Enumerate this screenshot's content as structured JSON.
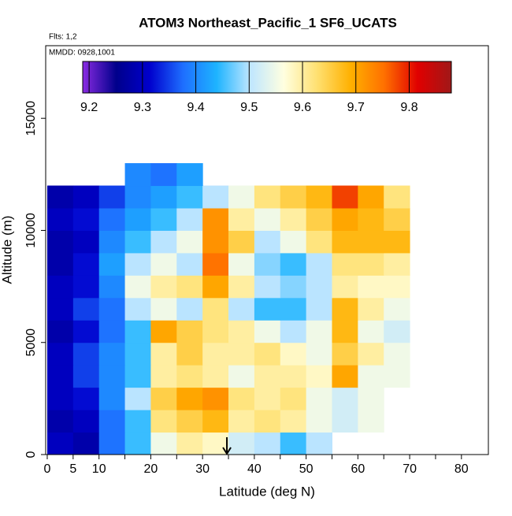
{
  "chart_data": {
    "type": "heatmap",
    "title": "ATOM3 Northeast_Pacific_1 SF6_UCATS",
    "annotations": [
      "Flts: 1,2",
      "MMDD: 0928,1001"
    ],
    "x_label": "Latitude (deg N)",
    "y_label": "Altitude (m)",
    "xlim": [
      -0.3,
      85.2
    ],
    "xticks": [
      0,
      5,
      10,
      20,
      30,
      40,
      50,
      60,
      70,
      80
    ],
    "x_minor_ticks": [
      15,
      25,
      35,
      45,
      55,
      65,
      75
    ],
    "ylim": [
      0,
      18240
    ],
    "yticks": [
      0,
      5000,
      10000,
      15000
    ],
    "x_bins": [
      0,
      5,
      10,
      15,
      20,
      25,
      30,
      35,
      40,
      45,
      50,
      55,
      60,
      65,
      70,
      75
    ],
    "y_bins": [
      0,
      1000,
      2000,
      3000,
      4000,
      5000,
      6000,
      7000,
      8000,
      9000,
      10000,
      11000,
      12000,
      13000
    ],
    "values": [
      [
        9.3,
        9.28,
        9.38,
        9.45,
        9.55,
        9.6,
        9.58,
        9.52,
        9.5,
        9.45,
        9.5,
        null,
        null,
        null,
        null
      ],
      [
        9.28,
        9.3,
        9.38,
        9.45,
        9.62,
        9.65,
        9.68,
        9.6,
        9.62,
        9.6,
        9.55,
        9.52,
        9.55,
        null,
        null
      ],
      [
        9.3,
        9.32,
        9.4,
        9.5,
        9.65,
        9.7,
        9.72,
        9.62,
        9.6,
        9.62,
        9.55,
        9.52,
        9.55,
        null,
        null
      ],
      [
        9.3,
        9.35,
        9.4,
        9.45,
        9.6,
        9.62,
        9.6,
        9.55,
        9.6,
        9.6,
        9.58,
        9.7,
        9.55,
        9.55,
        null
      ],
      [
        9.3,
        9.35,
        9.4,
        9.45,
        9.6,
        9.65,
        9.6,
        9.6,
        9.62,
        9.58,
        9.55,
        9.65,
        9.6,
        9.55,
        null
      ],
      [
        9.28,
        9.32,
        9.38,
        9.45,
        9.7,
        9.65,
        9.62,
        9.6,
        9.55,
        9.5,
        9.55,
        9.68,
        9.55,
        9.52,
        null
      ],
      [
        9.3,
        9.35,
        9.38,
        9.5,
        9.55,
        9.5,
        9.62,
        9.5,
        9.45,
        9.45,
        9.5,
        9.68,
        9.6,
        9.55,
        null
      ],
      [
        9.3,
        9.32,
        9.4,
        9.55,
        9.6,
        9.62,
        9.7,
        9.6,
        9.5,
        9.48,
        9.5,
        9.6,
        9.58,
        9.58,
        null
      ],
      [
        9.28,
        9.32,
        9.42,
        9.5,
        9.55,
        9.5,
        9.75,
        9.55,
        9.48,
        9.45,
        9.5,
        9.62,
        9.62,
        9.6,
        null
      ],
      [
        9.28,
        9.3,
        9.4,
        9.45,
        9.5,
        9.55,
        9.72,
        9.65,
        9.5,
        9.55,
        9.62,
        9.68,
        9.68,
        9.68,
        null
      ],
      [
        9.3,
        9.32,
        9.38,
        9.42,
        9.45,
        9.5,
        9.72,
        9.6,
        9.55,
        9.6,
        9.65,
        9.7,
        9.68,
        9.65,
        null
      ],
      [
        9.28,
        9.3,
        9.35,
        9.4,
        9.42,
        9.45,
        9.5,
        9.55,
        9.62,
        9.65,
        9.68,
        9.78,
        9.7,
        9.62,
        null
      ],
      [
        null,
        null,
        null,
        9.4,
        9.38,
        9.42,
        null,
        null,
        null,
        null,
        null,
        null,
        null,
        null,
        null
      ]
    ],
    "clim": [
      9.188,
      9.879
    ],
    "colorbar_ticks": [
      9.2,
      9.3,
      9.4,
      9.5,
      9.6,
      9.7,
      9.8
    ],
    "colormap": [
      "#8a2be2",
      "#00008b",
      "#0000cd",
      "#1e6fff",
      "#1eb4ff",
      "#bfe6ff",
      "#ffffe0",
      "#ffe070",
      "#ffb000",
      "#ff7000",
      "#e00000",
      "#a01818"
    ],
    "arrow_x": 34.7
  }
}
